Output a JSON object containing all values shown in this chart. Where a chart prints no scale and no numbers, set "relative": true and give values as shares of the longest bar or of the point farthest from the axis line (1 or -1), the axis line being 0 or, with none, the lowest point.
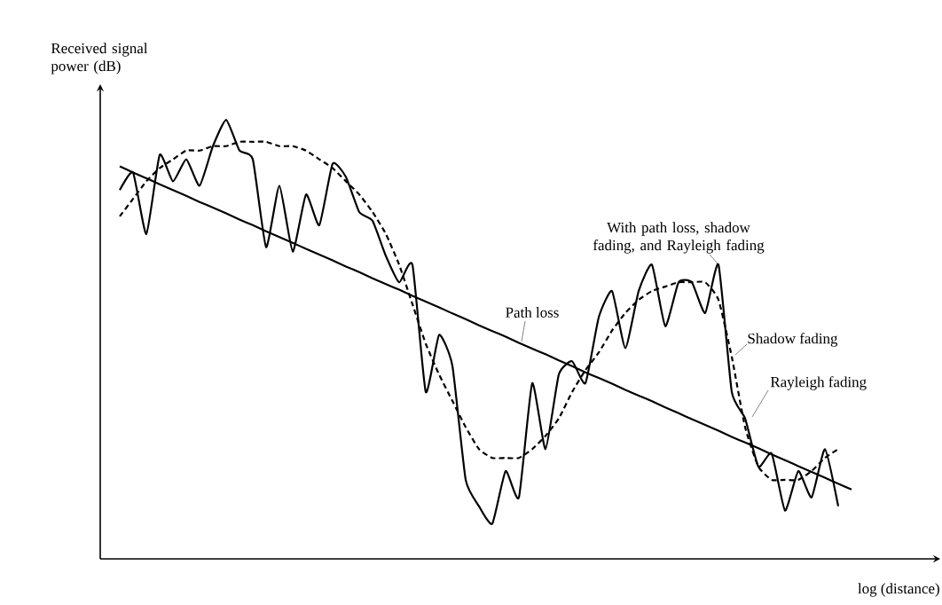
{
  "chart_data": {
    "type": "line",
    "relative": true,
    "xlabel": "log (distance)",
    "ylabel": "Received signal power (dB)",
    "categories": [
      null,
      null,
      null,
      null,
      null,
      null,
      null,
      null,
      null,
      null,
      null,
      null,
      null,
      null,
      null,
      null,
      null,
      null,
      null,
      null,
      null,
      null,
      null,
      null,
      null,
      null,
      null,
      null,
      null,
      null,
      null,
      null,
      null,
      null,
      null,
      null,
      null,
      null,
      null,
      null,
      null,
      null,
      null,
      null,
      null,
      null,
      null,
      null,
      null,
      null,
      null,
      null,
      null,
      null,
      null,
      null,
      null
    ],
    "series": [
      {
        "name": "With path loss, shadow fading, and Rayleigh fading",
        "color": "#000000",
        "line_style": "solid",
        "values": [
          null,
          0.84,
          0.88,
          0.74,
          0.92,
          0.86,
          0.91,
          0.85,
          0.94,
          1.0,
          0.93,
          0.91,
          0.71,
          0.85,
          0.7,
          0.83,
          0.76,
          0.9,
          0.87,
          0.79,
          0.77,
          0.69,
          0.63,
          0.67,
          0.38,
          0.51,
          0.44,
          0.18,
          0.12,
          0.08,
          0.2,
          0.14,
          0.4,
          0.25,
          0.42,
          0.45,
          0.4,
          0.55,
          0.61,
          0.48,
          0.61,
          0.67,
          0.53,
          0.63,
          0.63,
          0.56,
          0.67,
          0.38,
          0.32,
          0.21,
          0.24,
          0.11,
          0.2,
          0.14,
          0.25,
          0.12,
          null
        ]
      },
      {
        "name": "Path loss",
        "color": "#000000",
        "line_style": "solid",
        "values": [
          null,
          0.894,
          0.88,
          0.867,
          0.853,
          0.84,
          0.827,
          0.813,
          0.8,
          0.787,
          0.773,
          0.76,
          0.746,
          0.733,
          0.72,
          0.706,
          0.693,
          0.68,
          0.666,
          0.653,
          0.639,
          0.626,
          0.613,
          0.599,
          0.586,
          0.573,
          0.559,
          0.546,
          0.532,
          0.519,
          0.506,
          0.492,
          0.479,
          0.466,
          0.452,
          0.439,
          0.425,
          0.412,
          0.399,
          0.385,
          0.372,
          0.359,
          0.345,
          0.332,
          0.318,
          0.305,
          0.292,
          0.278,
          0.265,
          0.252,
          0.238,
          0.225,
          0.211,
          0.198,
          0.185,
          0.171,
          0.158
        ]
      },
      {
        "name": "Shadow fading",
        "color": "#000000",
        "line_style": "dashed",
        "values": [
          null,
          0.78,
          0.82,
          0.86,
          0.89,
          0.91,
          0.93,
          0.93,
          0.94,
          0.94,
          0.95,
          0.95,
          0.95,
          0.94,
          0.94,
          0.93,
          0.91,
          0.89,
          0.86,
          0.83,
          0.79,
          0.74,
          0.67,
          0.58,
          0.49,
          0.42,
          0.36,
          0.3,
          0.25,
          0.23,
          0.23,
          0.23,
          0.25,
          0.28,
          0.32,
          0.38,
          0.43,
          0.47,
          0.52,
          0.56,
          0.59,
          0.61,
          0.62,
          0.63,
          0.63,
          0.63,
          0.59,
          0.46,
          0.3,
          0.21,
          0.18,
          0.18,
          0.18,
          0.2,
          0.23,
          0.25,
          null
        ]
      }
    ],
    "annotations": [
      "Rayleigh fading"
    ]
  }
}
